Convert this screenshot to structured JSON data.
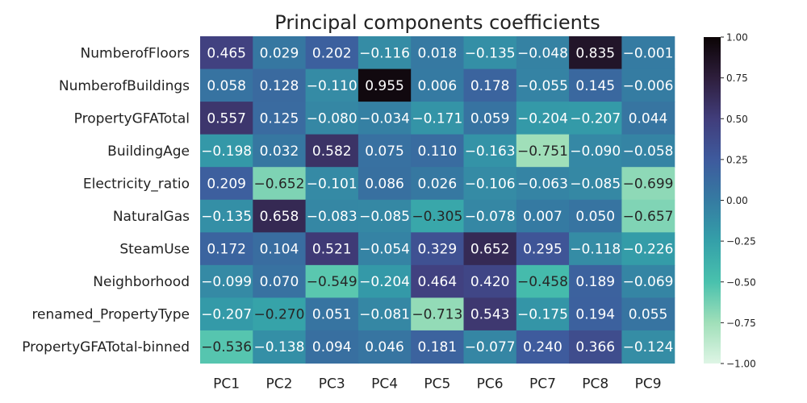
{
  "chart_data": {
    "type": "heatmap",
    "title": "Principal components coefficients",
    "xlabel": "",
    "ylabel": "",
    "columns": [
      "PC1",
      "PC2",
      "PC3",
      "PC4",
      "PC5",
      "PC6",
      "PC7",
      "PC8",
      "PC9"
    ],
    "rows": [
      "NumberofFloors",
      "NumberofBuildings",
      "PropertyGFATotal",
      "BuildingAge",
      "Electricity_ratio",
      "NaturalGas",
      "SteamUse",
      "Neighborhood",
      "renamed_PropertyType",
      "PropertyGFATotal-binned"
    ],
    "values": [
      [
        0.465,
        0.029,
        0.202,
        -0.116,
        0.018,
        -0.135,
        -0.048,
        0.835,
        -0.001
      ],
      [
        0.058,
        0.128,
        -0.11,
        0.955,
        0.006,
        0.178,
        -0.055,
        0.145,
        -0.006
      ],
      [
        0.557,
        0.125,
        -0.08,
        -0.034,
        -0.171,
        0.059,
        -0.204,
        -0.207,
        0.044
      ],
      [
        -0.198,
        0.032,
        0.582,
        0.075,
        0.11,
        -0.163,
        -0.751,
        -0.09,
        -0.058
      ],
      [
        0.209,
        -0.652,
        -0.101,
        0.086,
        0.026,
        -0.106,
        -0.063,
        -0.085,
        -0.699
      ],
      [
        -0.135,
        0.658,
        -0.083,
        -0.085,
        -0.305,
        -0.078,
        0.007,
        0.05,
        -0.657
      ],
      [
        0.172,
        0.104,
        0.521,
        -0.054,
        0.329,
        0.652,
        0.295,
        -0.118,
        -0.226
      ],
      [
        -0.099,
        0.07,
        -0.549,
        -0.204,
        0.464,
        0.42,
        -0.458,
        0.189,
        -0.069
      ],
      [
        -0.207,
        -0.27,
        0.051,
        -0.081,
        -0.713,
        0.543,
        -0.175,
        0.194,
        0.055
      ],
      [
        -0.536,
        -0.138,
        0.094,
        0.046,
        0.181,
        -0.077,
        0.24,
        0.366,
        -0.124
      ]
    ],
    "annotation_format": "0.000",
    "colorbar": {
      "range": [
        -1.0,
        1.0
      ],
      "ticks": [
        "1.00",
        "0.75",
        "0.50",
        "0.25",
        "0.00",
        "−0.25",
        "−0.50",
        "−0.75",
        "−1.00"
      ],
      "tick_values": [
        1.0,
        0.75,
        0.5,
        0.25,
        0.0,
        -0.25,
        -0.5,
        -0.75,
        -1.0
      ],
      "colormap": "mako_r",
      "color_stops": [
        {
          "v": -1.0,
          "color": "#def5e5"
        },
        {
          "v": -0.75,
          "color": "#a0dfb9"
        },
        {
          "v": -0.5,
          "color": "#49c1ad"
        },
        {
          "v": -0.25,
          "color": "#34a0a9"
        },
        {
          "v": 0.0,
          "color": "#357ba2"
        },
        {
          "v": 0.25,
          "color": "#3e5a9d"
        },
        {
          "v": 0.5,
          "color": "#413d7b"
        },
        {
          "v": 0.75,
          "color": "#2e1e3c"
        },
        {
          "v": 1.0,
          "color": "#0b0405"
        }
      ]
    },
    "grid": false,
    "legend": "colorbar-right"
  }
}
